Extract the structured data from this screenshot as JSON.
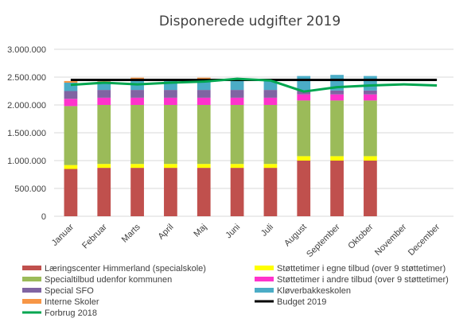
{
  "chart_data": {
    "type": "bar",
    "stacked": true,
    "title": "Disponerede udgifter 2019",
    "xlabel": "",
    "ylabel": "",
    "ylim": [
      0,
      3000000
    ],
    "yticks": [
      0,
      500000,
      1000000,
      1500000,
      2000000,
      2500000,
      3000000
    ],
    "ytick_labels": [
      "0",
      "500.000",
      "1.000.000",
      "1.500.000",
      "2.000.000",
      "2.500.000",
      "3.000.000"
    ],
    "grid": true,
    "legend_position": "bottom",
    "categories": [
      "Januar",
      "Februar",
      "Marts",
      "April",
      "Maj",
      "Juni",
      "Juli",
      "August",
      "September",
      "Oktober",
      "November",
      "December"
    ],
    "series": [
      {
        "name": "Læringscenter Himmerland (specialskole)",
        "color": "#c0504d",
        "values": [
          850000,
          870000,
          870000,
          870000,
          870000,
          870000,
          870000,
          1000000,
          1000000,
          1000000,
          null,
          null
        ]
      },
      {
        "name": "Støttetimer i egne tilbud (over 9 støttetimer)",
        "color": "#ffff00",
        "values": [
          70000,
          70000,
          70000,
          70000,
          70000,
          70000,
          70000,
          80000,
          80000,
          80000,
          null,
          null
        ]
      },
      {
        "name": "Specialtilbud udenfor kommunen",
        "color": "#9bbb59",
        "values": [
          1060000,
          1060000,
          1060000,
          1060000,
          1060000,
          1060000,
          1060000,
          1000000,
          1000000,
          1000000,
          null,
          null
        ]
      },
      {
        "name": "Støttetimer i andre tilbud (over 9 støttetimer)",
        "color": "#ff33cc",
        "values": [
          130000,
          130000,
          130000,
          130000,
          130000,
          130000,
          130000,
          110000,
          110000,
          110000,
          null,
          null
        ]
      },
      {
        "name": "Special SFO",
        "color": "#8064a2",
        "values": [
          140000,
          140000,
          140000,
          140000,
          140000,
          140000,
          140000,
          70000,
          70000,
          70000,
          null,
          null
        ]
      },
      {
        "name": "Kløverbakkeskolen",
        "color": "#4bacc6",
        "values": [
          150000,
          150000,
          170000,
          170000,
          170000,
          170000,
          170000,
          260000,
          280000,
          260000,
          null,
          null
        ]
      },
      {
        "name": "Interne Skoler",
        "color": "#f79646",
        "values": [
          30000,
          30000,
          50000,
          30000,
          50000,
          30000,
          30000,
          0,
          0,
          0,
          null,
          null
        ]
      }
    ],
    "lines": [
      {
        "name": "Budget 2019",
        "color": "#000000",
        "values": [
          2450000,
          2450000,
          2450000,
          2450000,
          2450000,
          2450000,
          2450000,
          2450000,
          2450000,
          2450000,
          2450000,
          2450000
        ]
      },
      {
        "name": "Forbrug 2018",
        "color": "#00a650",
        "values": [
          2360000,
          2400000,
          2370000,
          2400000,
          2420000,
          2470000,
          2440000,
          2240000,
          2320000,
          2350000,
          2370000,
          2350000
        ]
      }
    ]
  }
}
